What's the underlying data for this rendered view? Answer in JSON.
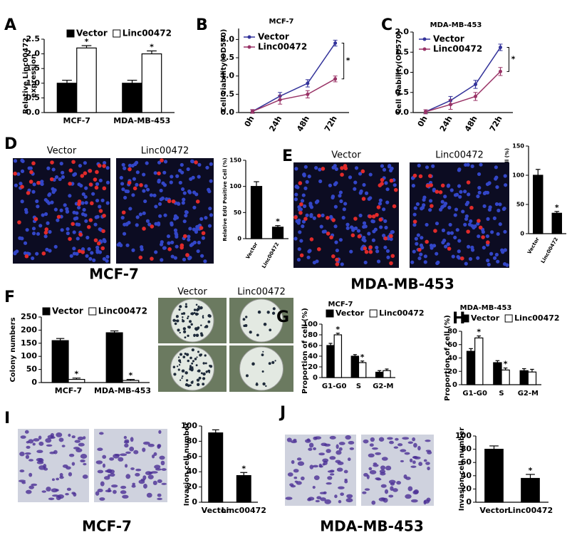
{
  "chart_data": [
    {
      "panel": "A",
      "type": "bar",
      "ylabel": [
        "Relative Linc00472",
        "expression"
      ],
      "categories": [
        "MCF-7",
        "MDA-MB-453"
      ],
      "series": [
        {
          "name": "Vector",
          "color": "#000000",
          "values": [
            1.0,
            1.0
          ],
          "errors": [
            0.1,
            0.1
          ]
        },
        {
          "name": "Linc00472",
          "color": "#ffffff",
          "values": [
            2.2,
            2.0
          ],
          "errors": [
            0.08,
            0.1
          ],
          "significance": [
            "*",
            "*"
          ]
        }
      ],
      "ylim": [
        0,
        2.5
      ],
      "yticks": [
        {
          "value": 0,
          "label": "0.0"
        },
        0.5,
        {
          "value": 1,
          "label": "1.0"
        },
        1.5,
        {
          "value": 2,
          "label": "2.0"
        },
        2.5
      ]
    },
    {
      "panel": "B",
      "type": "line",
      "title": "MCF-7",
      "ylabel": "Cell viability(OD570)",
      "categories": [
        "0h",
        "24h",
        "48h",
        "72h"
      ],
      "series": [
        {
          "name": "Vector",
          "color": "#33339a",
          "values": [
            0.03,
            0.45,
            0.8,
            1.9
          ],
          "errors": [
            0.05,
            0.1,
            0.1,
            0.08
          ]
        },
        {
          "name": "Linc00472",
          "color": "#993366",
          "values": [
            0.03,
            0.35,
            0.5,
            0.92
          ],
          "errors": [
            0.05,
            0.12,
            0.1,
            0.08
          ]
        }
      ],
      "annotation": "*",
      "ylim": [
        0,
        2.3
      ],
      "yticks": [
        {
          "value": 0,
          "label": "0.0"
        },
        0.5,
        {
          "value": 1,
          "label": "1.0"
        },
        1.5,
        {
          "value": 2,
          "label": "2.0"
        }
      ]
    },
    {
      "panel": "C",
      "type": "line",
      "title": "MDA-MB-453",
      "ylabel": "Cell viability(OD570)",
      "categories": [
        "0h",
        "24h",
        "48h",
        "72h"
      ],
      "series": [
        {
          "name": "Vector",
          "color": "#33339a",
          "values": [
            0.02,
            0.3,
            0.7,
            1.62
          ],
          "errors": [
            0.05,
            0.1,
            0.1,
            0.08
          ]
        },
        {
          "name": "Linc00472",
          "color": "#993366",
          "values": [
            0.02,
            0.2,
            0.4,
            1.02
          ],
          "errors": [
            0.05,
            0.12,
            0.1,
            0.1
          ]
        }
      ],
      "annotation": "*",
      "ylim": [
        0,
        2.0
      ],
      "yticks": [
        {
          "value": 0,
          "label": "0.0"
        },
        0.5,
        {
          "value": 1,
          "label": "1.0"
        },
        1.5,
        {
          "value": 2,
          "label": "2.0"
        }
      ]
    },
    {
      "panel": "D",
      "type": "bar",
      "image_labels": [
        "Vector",
        "Linc00472"
      ],
      "caption": "MCF-7",
      "ylabel": "Relative EdU Positive Cell (%)",
      "categories": [
        "Vector",
        "Linc00472"
      ],
      "values": [
        100,
        22
      ],
      "errors": [
        9,
        3
      ],
      "significance": [
        null,
        "*"
      ],
      "color": "#000000",
      "ylim": [
        0,
        150
      ],
      "yticks": [
        0,
        50,
        100,
        150
      ]
    },
    {
      "panel": "E",
      "type": "bar",
      "image_labels": [
        "Vector",
        "Linc00472"
      ],
      "caption": "MDA-MB-453",
      "ylabel": "Relative EdU Positive Cell (%)",
      "categories": [
        "Vector",
        "Linc00472"
      ],
      "values": [
        100,
        35
      ],
      "errors": [
        10,
        3
      ],
      "significance": [
        null,
        "*"
      ],
      "color": "#000000",
      "ylim": [
        0,
        150
      ],
      "yticks": [
        0,
        50,
        100,
        150
      ]
    },
    {
      "panel": "F",
      "type": "bar",
      "image_labels": [
        "Vector",
        "Linc00472"
      ],
      "ylabel": "Colony numbers",
      "categories": [
        "MCF-7",
        "MDA-MB-453"
      ],
      "series": [
        {
          "name": "Vector",
          "color": "#000000",
          "values": [
            160,
            190
          ],
          "errors": [
            8,
            7
          ]
        },
        {
          "name": "Linc00472",
          "color": "#ffffff",
          "values": [
            12,
            8
          ],
          "errors": [
            5,
            4
          ],
          "significance": [
            "*",
            "*"
          ]
        }
      ],
      "ylim": [
        0,
        250
      ],
      "yticks": [
        0,
        50,
        100,
        150,
        200,
        250
      ]
    },
    {
      "panel": "G",
      "type": "bar",
      "title": "MCF-7",
      "ylabel": "Proportion of cell (%)",
      "categories": [
        "G1-G0",
        "S",
        "G2-M"
      ],
      "series": [
        {
          "name": "Vector",
          "color": "#000000",
          "values": [
            60,
            40,
            10
          ],
          "errors": [
            4,
            3,
            3
          ]
        },
        {
          "name": "Linc00472",
          "color": "#ffffff",
          "values": [
            80,
            28,
            13
          ],
          "errors": [
            3,
            3,
            3
          ],
          "significance": [
            "*",
            "*",
            null
          ]
        }
      ],
      "ylim": [
        0,
        100
      ],
      "yticks": [
        0,
        20,
        40,
        60,
        80,
        100
      ]
    },
    {
      "panel": "H",
      "type": "bar",
      "title": "MDA-MB-453",
      "ylabel": "Proportion of cell (%)",
      "categories": [
        "G1-G0",
        "S",
        "G2-M"
      ],
      "series": [
        {
          "name": "Vector",
          "color": "#000000",
          "values": [
            50,
            33,
            21
          ],
          "errors": [
            4,
            3,
            3
          ]
        },
        {
          "name": "Linc00472",
          "color": "#ffffff",
          "values": [
            70,
            22,
            19
          ],
          "errors": [
            3,
            3,
            4
          ],
          "significance": [
            "*",
            "*",
            null
          ]
        }
      ],
      "ylim": [
        0,
        80
      ],
      "yticks": [
        0,
        20,
        40,
        60,
        80
      ]
    },
    {
      "panel": "I",
      "type": "bar",
      "caption": "MCF-7",
      "ylabel": "Invasion cell number",
      "categories": [
        "Vector",
        "Linc00472"
      ],
      "values": [
        91,
        35
      ],
      "errors": [
        4,
        4
      ],
      "significance": [
        null,
        "*"
      ],
      "color": "#000000",
      "ylim": [
        0,
        100
      ],
      "yticks": [
        0,
        20,
        40,
        60,
        80,
        100
      ]
    },
    {
      "panel": "J",
      "type": "bar",
      "caption": "MDA-MB-453",
      "ylabel": "Invasion cell number",
      "categories": [
        "Vector",
        "Linc00472"
      ],
      "values": [
        80,
        36
      ],
      "errors": [
        5,
        6
      ],
      "significance": [
        null,
        "*"
      ],
      "color": "#000000",
      "ylim": [
        0,
        100
      ],
      "yticks": [
        0,
        20,
        40,
        60,
        80,
        100
      ]
    }
  ]
}
